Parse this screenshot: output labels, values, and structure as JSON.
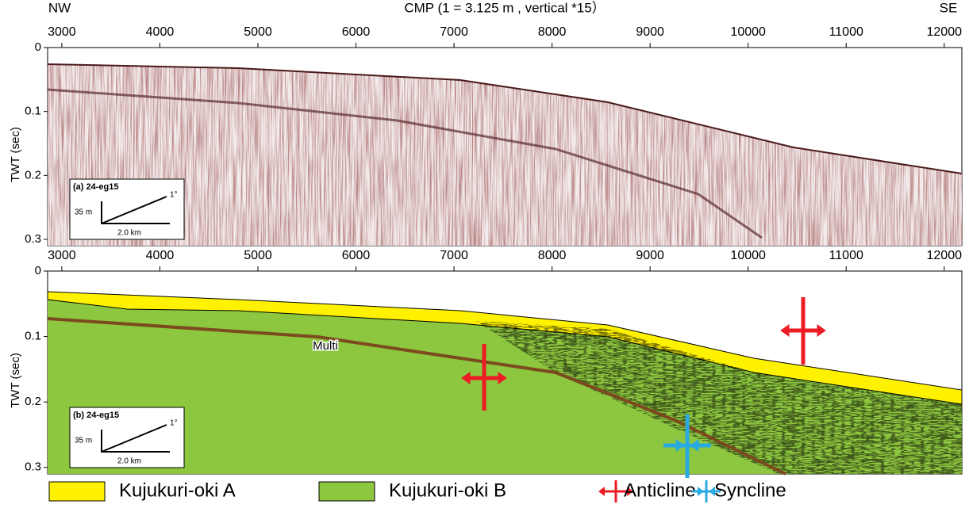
{
  "chart_data": [
    {
      "type": "profile",
      "title": "CMP (1 = 3.125 m , vertical *15）",
      "left_label": "NW",
      "right_label": "SE",
      "ylabel": "TWT (sec)",
      "xlim": [
        2855,
        12180
      ],
      "xticks": [
        3000,
        4000,
        5000,
        6000,
        7000,
        8000,
        9000,
        10000,
        11000,
        12000
      ],
      "ylim": [
        0,
        0.31
      ],
      "yticks": [
        0,
        0.1,
        0.2,
        0.3
      ],
      "inset": {
        "label": "(a) 24-eg15",
        "vertical": "35 m",
        "horizontal": "2.0 km",
        "angle": "1°"
      }
    },
    {
      "type": "profile",
      "ylabel": "TWT (sec)",
      "xlim": [
        2855,
        12180
      ],
      "xticks": [
        3000,
        4000,
        5000,
        6000,
        7000,
        8000,
        9000,
        10000,
        11000,
        12000
      ],
      "ylim": [
        0,
        0.31
      ],
      "yticks": [
        0,
        0.1,
        0.2,
        0.3
      ],
      "inset": {
        "label": "(b) 24-eg15",
        "vertical": "35 m",
        "horizontal": "2.0 km",
        "angle": "1°"
      },
      "annotations": [
        "Multi"
      ],
      "legend": [
        {
          "name": "Kujukuri-oki A",
          "color": "#fff200"
        },
        {
          "name": "Kujukuri-oki B",
          "color": "#8dc63f"
        },
        {
          "name": "Anticline",
          "color": "#ed1c24"
        },
        {
          "name": "Syncline",
          "color": "#29abe2"
        }
      ]
    }
  ]
}
